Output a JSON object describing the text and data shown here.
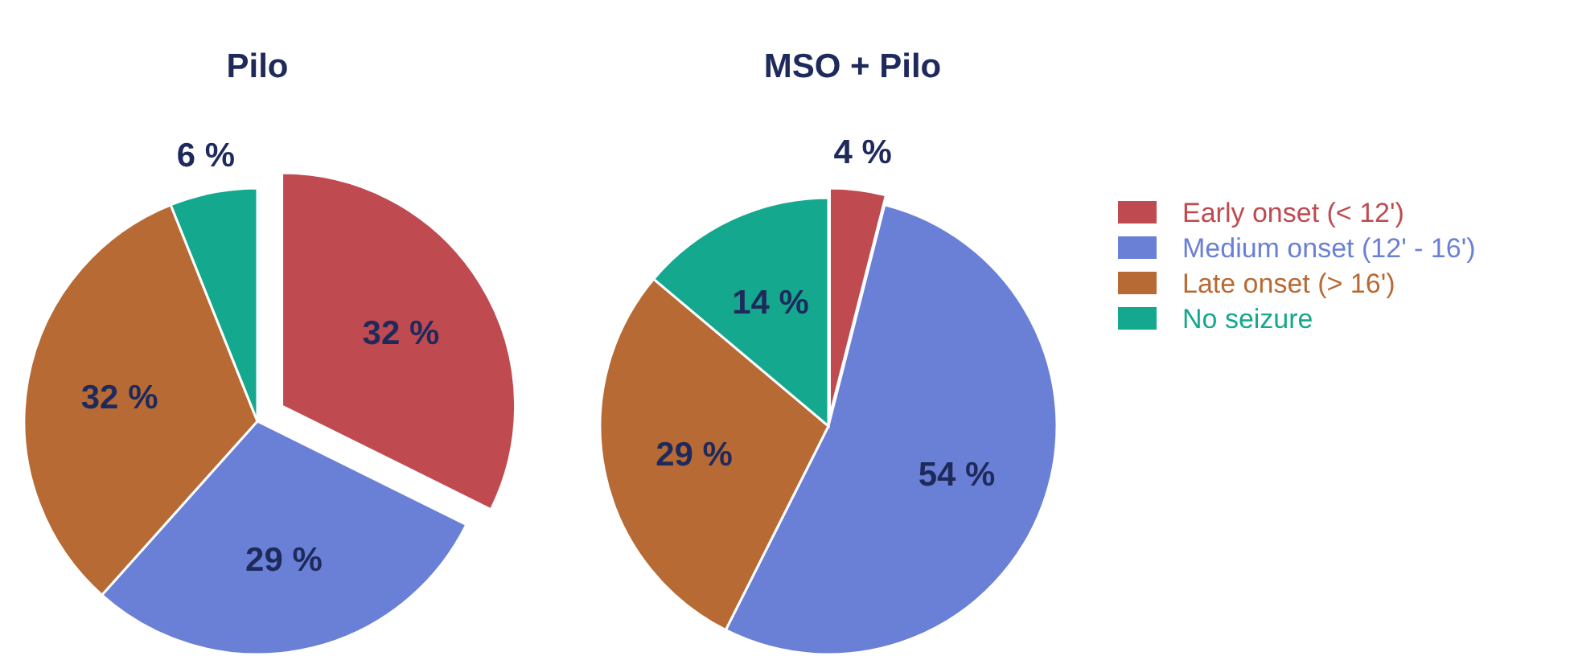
{
  "chart_data": [
    {
      "type": "pie",
      "title": "Pilo",
      "categories": [
        null,
        null,
        null,
        null
      ],
      "values": [
        32,
        29,
        32,
        6
      ],
      "value_labels": [
        "32 %",
        "29 %",
        "32 %",
        "6 %"
      ],
      "colors": [
        "#bf4a4f",
        "#6a80d6",
        "#b86a34",
        "#14a88e"
      ]
    },
    {
      "type": "pie",
      "title": "MSO + Pilo",
      "categories": [
        "Early onset (< 12')",
        "Medium onset (12' - 16')",
        "Late onset (> 16')",
        "No seizure"
      ],
      "values": [
        4,
        54,
        29,
        14
      ],
      "value_labels": [
        "4 %",
        "54 %",
        "29 %",
        "14 %"
      ],
      "colors": [
        "#bf4a4f",
        "#6a80d6",
        "#b86a34",
        "#14a88e"
      ],
      "legend": "right"
    }
  ]
}
